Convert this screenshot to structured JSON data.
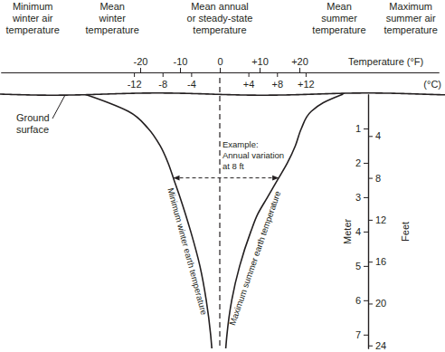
{
  "chart_data": {
    "type": "line",
    "orientation": "horizontal",
    "xlabel": "Temperature (°F)",
    "x2label": "(°C)",
    "ylabel": "Meter",
    "y2label": "Feet",
    "xlim": [
      -55,
      55
    ],
    "xticks": [
      -20,
      -10,
      0,
      {
        "value": 10,
        "label": "+10"
      },
      {
        "value": 20,
        "label": "+20"
      }
    ],
    "x2lim": [
      -30.6,
      30.6
    ],
    "x2ticks": [
      -12,
      -8,
      -4,
      {
        "value": 4,
        "label": "+4"
      },
      {
        "value": 8,
        "label": "+8"
      },
      {
        "value": 12,
        "label": "+12"
      }
    ],
    "ylim": [
      0,
      7.4
    ],
    "yticks": [
      1,
      2,
      3,
      4,
      5,
      6,
      7
    ],
    "y2lim": [
      0,
      24.28
    ],
    "y2ticks": [
      4,
      8,
      12,
      16,
      20,
      24
    ],
    "y": [
      0,
      0.25,
      0.5,
      1,
      1.5,
      2,
      2.5,
      3,
      3.5,
      4,
      5,
      6,
      7,
      7.4
    ],
    "series": [
      {
        "name": "Minimum winter earth temperature",
        "color": "#231f20",
        "values": [
          -34,
          -28,
          -23,
          -18,
          -15,
          -13,
          -11.5,
          -10,
          -8.6,
          -7.3,
          -5,
          -3.4,
          -2.3,
          -2
        ]
      },
      {
        "name": "Maximum summer earth temperature",
        "color": "#231f20",
        "values": [
          31,
          26,
          23,
          20.5,
          19,
          17,
          14.5,
          12,
          9.5,
          7.8,
          5,
          3,
          1.8,
          1.5
        ]
      }
    ],
    "reference_temperatures": [
      {
        "label": [
          "Minimum",
          "winter air",
          "temperature"
        ],
        "value": -47
      },
      {
        "label": [
          "Mean",
          "winter",
          "temperature"
        ],
        "value": -27
      },
      {
        "label": [
          "Mean annual",
          "or steady-state",
          "temperature"
        ],
        "value": 0
      },
      {
        "label": [
          "Mean",
          "summer",
          "temperature"
        ],
        "value": 30
      },
      {
        "label": [
          "Maximum",
          "summer air",
          "temperature"
        ],
        "value": 48
      }
    ],
    "mean_line": 0,
    "ground_label": [
      "Ground",
      "surface"
    ],
    "annotation": {
      "text": [
        "Example:",
        "Annual variation",
        "at 8 ft"
      ],
      "depth": 8,
      "range": [
        -11.7,
        14.8
      ]
    }
  }
}
